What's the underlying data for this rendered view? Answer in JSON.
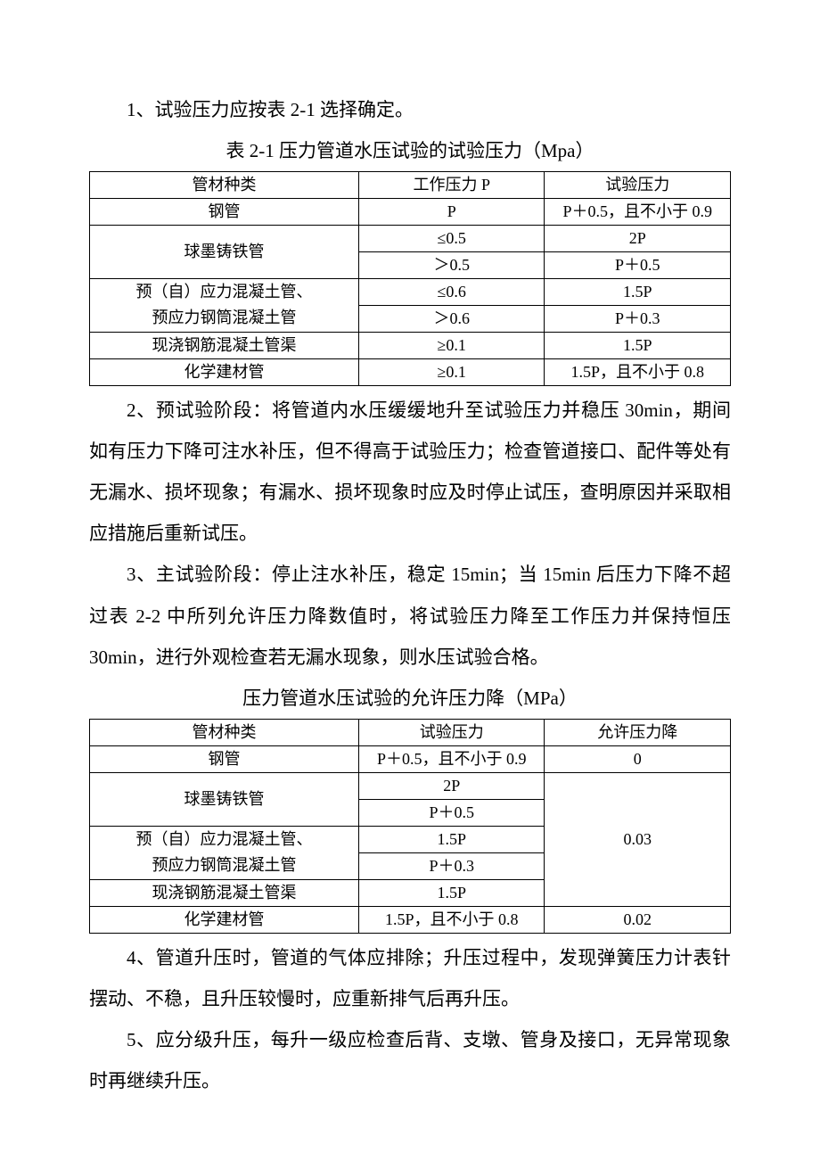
{
  "para1": "1、试验压力应按表 2-1 选择确定。",
  "table1": {
    "caption": "表 2-1   压力管道水压试验的试验压力（Mpa）",
    "headers": [
      "管材种类",
      "工作压力 P",
      "试验压力"
    ],
    "rows": [
      {
        "c0": "钢管",
        "c1": "P",
        "c2": "P＋0.5，且不小于 0.9",
        "rowspan0": 1
      },
      {
        "c0": "球墨铸铁管",
        "c1": "≤0.5",
        "c2": "2P",
        "rowspan0": 2
      },
      {
        "c1": "＞0.5",
        "c2": "P＋0.5"
      },
      {
        "c0": "预（自）应力混凝土管、",
        "c1": "≤0.6",
        "c2": "1.5P",
        "rowspan0": 1,
        "noBottom0": true
      },
      {
        "c0": "预应力钢筒混凝土管",
        "c1": "＞0.6",
        "c2": "P＋0.3",
        "rowspan0": 1
      },
      {
        "c0": "现浇钢筋混凝土管渠",
        "c1": "≥0.1",
        "c2": "1.5P",
        "rowspan0": 1
      },
      {
        "c0": "化学建材管",
        "c1": "≥0.1",
        "c2": "1.5P，且不小于 0.8",
        "rowspan0": 1
      }
    ]
  },
  "para2": "2、预试验阶段：将管道内水压缓缓地升至试验压力并稳压 30min，期间如有压力下降可注水补压，但不得高于试验压力；检查管道接口、配件等处有无漏水、损坏现象；有漏水、损坏现象时应及时停止试压，查明原因并采取相应措施后重新试压。",
  "para3": "3、主试验阶段：停止注水补压，稳定 15min；当 15min 后压力下降不超过表 2-2 中所列允许压力降数值时，将试验压力降至工作压力并保持恒压 30min，进行外观检查若无漏水现象，则水压试验合格。",
  "table2": {
    "caption": "压力管道水压试验的允许压力降（MPa）",
    "headers": [
      "管材种类",
      "试验压力",
      "允许压力降"
    ],
    "r1": {
      "c0": "钢管",
      "c1": "P＋0.5，且不小于 0.9",
      "c2": "0"
    },
    "r2": {
      "c0": "球墨铸铁管",
      "c1": "2P"
    },
    "r3": {
      "c1": "P＋0.5"
    },
    "r4": {
      "c0": "预（自）应力混凝土管、",
      "c1": "1.5P"
    },
    "r5": {
      "c0": "预应力钢筒混凝土管",
      "c1": "P＋0.3"
    },
    "r6": {
      "c0": "现浇钢筋混凝土管渠",
      "c1": "1.5P"
    },
    "merged003": "0.03",
    "r7": {
      "c0": "化学建材管",
      "c1": "1.5P，且不小于 0.8",
      "c2": "0.02"
    }
  },
  "para4": "4、管道升压时，管道的气体应排除；升压过程中，发现弹簧压力计表针摆动、不稳，且升压较慢时，应重新排气后再升压。",
  "para5": "5、应分级升压，每升一级应检查后背、支墩、管身及接口，无异常现象时再继续升压。"
}
